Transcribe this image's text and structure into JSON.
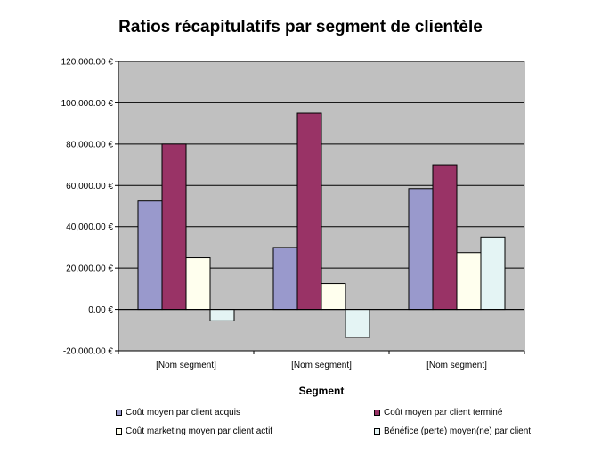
{
  "chart_data": {
    "type": "bar",
    "title": "Ratios récapitulatifs par segment de clientèle",
    "xlabel": "Segment",
    "ylabel": "",
    "categories": [
      "[Nom segment]",
      "[Nom segment]",
      "[Nom segment]"
    ],
    "series": [
      {
        "name": "Coût moyen par client acquis",
        "values": [
          52500,
          30000,
          58500
        ],
        "color": "#9999cc"
      },
      {
        "name": "Coût moyen par client terminé",
        "values": [
          80000,
          95000,
          70000
        ],
        "color": "#993366"
      },
      {
        "name": "Coût marketing moyen par client actif",
        "values": [
          25000,
          12500,
          27500
        ],
        "color": "#ffffee"
      },
      {
        "name": "Bénéfice (perte) moyen(ne) par client",
        "values": [
          -5500,
          -13500,
          35000
        ],
        "color": "#e4f4f4"
      }
    ],
    "ylim": [
      -20000,
      120000
    ],
    "y_ticks": [
      {
        "value": -20000,
        "label": "-20,000.00 €"
      },
      {
        "value": 0,
        "label": "0.00 €"
      },
      {
        "value": 20000,
        "label": "20,000.00 €"
      },
      {
        "value": 40000,
        "label": "40,000.00 €"
      },
      {
        "value": 60000,
        "label": "60,000.00 €"
      },
      {
        "value": 80000,
        "label": "80,000.00 €"
      },
      {
        "value": 100000,
        "label": "100,000.00 €"
      },
      {
        "value": 120000,
        "label": "120,000.00 €"
      }
    ],
    "grid": true,
    "plot_background": "#c0c0c0",
    "legend_position": "bottom"
  }
}
